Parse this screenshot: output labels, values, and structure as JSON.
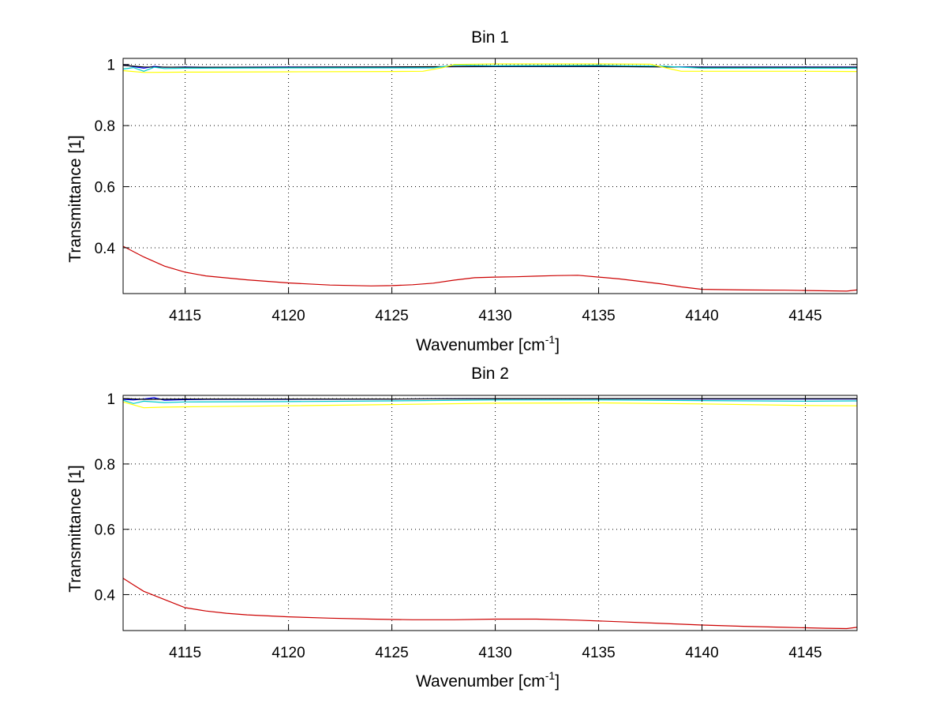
{
  "figure": {
    "background": "#ffffff"
  },
  "chart_data": [
    {
      "type": "line",
      "title": "Bin 1",
      "xlabel": "Wavenumber [cm",
      "xlabel_sup": "-1",
      "xlabel_tail": "]",
      "ylabel": "Transmittance [1]",
      "xlim": [
        4112,
        4147.5
      ],
      "ylim": [
        0.25,
        1.02
      ],
      "xticks": [
        4115,
        4120,
        4125,
        4130,
        4135,
        4140,
        4145
      ],
      "xtick_labels": [
        "4115",
        "4120",
        "4125",
        "4130",
        "4135",
        "4140",
        "4145"
      ],
      "yticks": [
        0.4,
        0.6,
        0.8,
        1.0
      ],
      "ytick_labels": [
        "0.4",
        "0.6",
        "0.8",
        "1"
      ],
      "grid": true,
      "series": [
        {
          "color": "#0000ff",
          "x": [
            4112,
            4112.5,
            4113,
            4113.5,
            4114,
            4115,
            4116,
            4120,
            4125,
            4130,
            4135,
            4140,
            4145,
            4147.5
          ],
          "y": [
            0.999,
            0.993,
            0.988,
            0.994,
            0.991,
            0.992,
            0.991,
            0.992,
            0.992,
            0.993,
            0.993,
            0.992,
            0.992,
            0.992
          ]
        },
        {
          "color": "#000000",
          "x": [
            4112,
            4113,
            4115,
            4120,
            4125,
            4130,
            4135,
            4140,
            4145,
            4147.5
          ],
          "y": [
            0.997,
            0.992,
            0.991,
            0.991,
            0.992,
            0.994,
            0.994,
            0.991,
            0.991,
            0.991
          ]
        },
        {
          "color": "#00cccc",
          "x": [
            4112,
            4112.5,
            4113,
            4113.5,
            4114,
            4115,
            4120,
            4127,
            4128,
            4130,
            4135,
            4138,
            4140,
            4145,
            4147.5
          ],
          "y": [
            0.985,
            0.99,
            0.978,
            0.991,
            0.987,
            0.988,
            0.989,
            0.989,
            0.998,
            0.996,
            0.997,
            0.995,
            0.988,
            0.988,
            0.988
          ]
        },
        {
          "color": "#ffff00",
          "x": [
            4112,
            4113,
            4115,
            4120,
            4125,
            4126.5,
            4127.5,
            4128,
            4130,
            4135,
            4137.5,
            4138.5,
            4139,
            4140,
            4145,
            4147.5
          ],
          "y": [
            0.98,
            0.974,
            0.975,
            0.976,
            0.977,
            0.978,
            0.99,
            1.0,
            1.002,
            1.002,
            1.001,
            0.985,
            0.978,
            0.978,
            0.978,
            0.977
          ]
        },
        {
          "color": "#cc0000",
          "x": [
            4112,
            4113,
            4114,
            4115,
            4116,
            4118,
            4120,
            4122,
            4124,
            4125,
            4126,
            4127,
            4128,
            4129,
            4130,
            4131,
            4132,
            4133,
            4134,
            4135,
            4136,
            4137,
            4138,
            4139,
            4140,
            4142,
            4144,
            4145,
            4146,
            4147,
            4147.5
          ],
          "y": [
            0.405,
            0.37,
            0.34,
            0.32,
            0.308,
            0.295,
            0.285,
            0.278,
            0.275,
            0.276,
            0.279,
            0.284,
            0.294,
            0.302,
            0.304,
            0.305,
            0.307,
            0.309,
            0.31,
            0.304,
            0.298,
            0.29,
            0.282,
            0.272,
            0.264,
            0.262,
            0.261,
            0.26,
            0.259,
            0.258,
            0.262
          ]
        }
      ]
    },
    {
      "type": "line",
      "title": "Bin 2",
      "xlabel": "Wavenumber [cm",
      "xlabel_sup": "-1",
      "xlabel_tail": "]",
      "ylabel": "Transmittance [1]",
      "xlim": [
        4112,
        4147.5
      ],
      "ylim": [
        0.29,
        1.01
      ],
      "xticks": [
        4115,
        4120,
        4125,
        4130,
        4135,
        4140,
        4145
      ],
      "xtick_labels": [
        "4115",
        "4120",
        "4125",
        "4130",
        "4135",
        "4140",
        "4145"
      ],
      "yticks": [
        0.4,
        0.6,
        0.8,
        1.0
      ],
      "ytick_labels": [
        "0.4",
        "0.6",
        "0.8",
        "1"
      ],
      "grid": true,
      "series": [
        {
          "color": "#0000ff",
          "x": [
            4112,
            4112.5,
            4113,
            4113.5,
            4114,
            4115,
            4116,
            4120,
            4125,
            4130,
            4135,
            4140,
            4145,
            4147.5
          ],
          "y": [
            0.998,
            0.996,
            0.999,
            1.003,
            0.995,
            0.997,
            0.998,
            0.998,
            0.999,
            1.0,
            1.0,
            0.999,
            0.999,
            0.999
          ]
        },
        {
          "color": "#000000",
          "x": [
            4112,
            4113,
            4115,
            4120,
            4125,
            4130,
            4135,
            4140,
            4145,
            4147.5
          ],
          "y": [
            1.0,
            0.998,
            0.999,
            0.999,
            0.999,
            1.0,
            1.0,
            1.0,
            1.0,
            1.0
          ]
        },
        {
          "color": "#00cccc",
          "x": [
            4112,
            4112.5,
            4113,
            4114,
            4115,
            4120,
            4125,
            4130,
            4135,
            4140,
            4145,
            4147.5
          ],
          "y": [
            0.995,
            0.985,
            0.992,
            0.988,
            0.99,
            0.991,
            0.993,
            0.996,
            0.996,
            0.994,
            0.992,
            0.993
          ]
        },
        {
          "color": "#ffff00",
          "x": [
            4112,
            4113,
            4114,
            4115,
            4120,
            4125,
            4130,
            4135,
            4140,
            4145,
            4147.5
          ],
          "y": [
            0.99,
            0.972,
            0.974,
            0.975,
            0.978,
            0.982,
            0.986,
            0.987,
            0.984,
            0.979,
            0.978
          ]
        },
        {
          "color": "#cc0000",
          "x": [
            4112,
            4112.5,
            4113,
            4114,
            4115,
            4116,
            4117,
            4118,
            4120,
            4122,
            4124,
            4126,
            4128,
            4130,
            4132,
            4134,
            4136,
            4138,
            4140,
            4142,
            4144,
            4146,
            4147,
            4147.5
          ],
          "y": [
            0.45,
            0.43,
            0.41,
            0.385,
            0.36,
            0.35,
            0.343,
            0.338,
            0.332,
            0.328,
            0.325,
            0.323,
            0.323,
            0.325,
            0.325,
            0.322,
            0.317,
            0.312,
            0.307,
            0.303,
            0.3,
            0.297,
            0.296,
            0.3
          ]
        }
      ]
    }
  ]
}
